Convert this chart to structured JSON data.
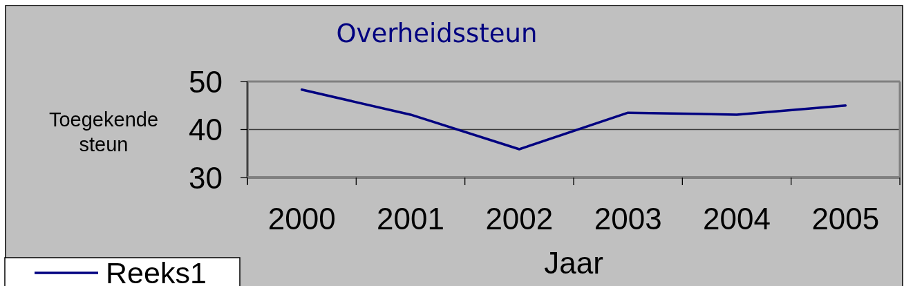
{
  "chart_data": {
    "type": "line",
    "title": "Overheidssteun",
    "xlabel": "Jaar",
    "ylabel": "Toegekende steun",
    "categories": [
      "2000",
      "2001",
      "2002",
      "2003",
      "2004",
      "2005"
    ],
    "series": [
      {
        "name": "Reeks1",
        "color": "#000080",
        "values": [
          48.3,
          43.1,
          35.9,
          43.5,
          43.1,
          45.0
        ]
      }
    ],
    "ylim": [
      30,
      50
    ],
    "yticks": [
      30,
      40,
      50
    ],
    "grid": "y",
    "legend": "bottom left",
    "line_style": "solid"
  }
}
